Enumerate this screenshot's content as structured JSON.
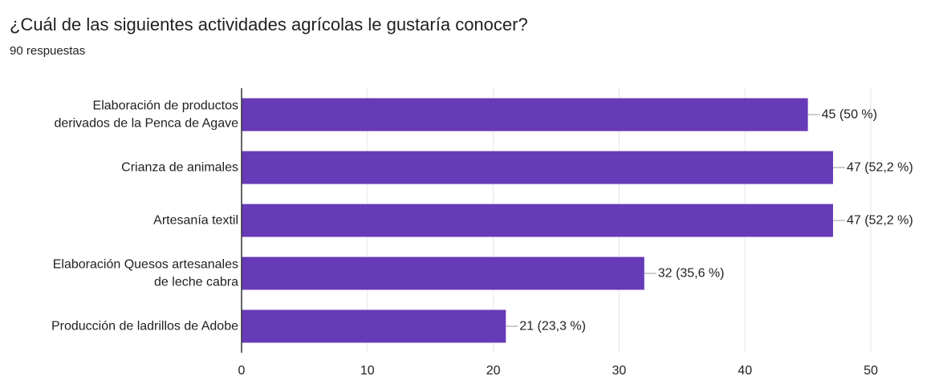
{
  "question": {
    "title": "¿Cuál de las siguientes actividades agrícolas le gustaría conocer?",
    "responses": "90 respuestas"
  },
  "colors": {
    "bar": "#673ab7",
    "grid": "#e6e6e6",
    "axis": "#333333",
    "text": "#202124"
  },
  "chart_data": {
    "type": "bar",
    "orientation": "horizontal",
    "categories": [
      [
        "Elaboración de productos",
        "derivados de la Penca de Agave"
      ],
      [
        "Crianza de animales"
      ],
      [
        "Artesanía textil"
      ],
      [
        "Elaboración Quesos artesanales",
        "de leche cabra"
      ],
      [
        "Producción de ladrillos de Adobe"
      ]
    ],
    "values": [
      45,
      47,
      47,
      32,
      21
    ],
    "labels": [
      "45 (50 %)",
      "47 (52,2 %)",
      "47 (52,2 %)",
      "32 (35,6 %)",
      "21 (23,3 %)"
    ],
    "xlim": [
      0,
      50
    ],
    "xticks": [
      0,
      10,
      20,
      30,
      40,
      50
    ],
    "grid": true
  }
}
